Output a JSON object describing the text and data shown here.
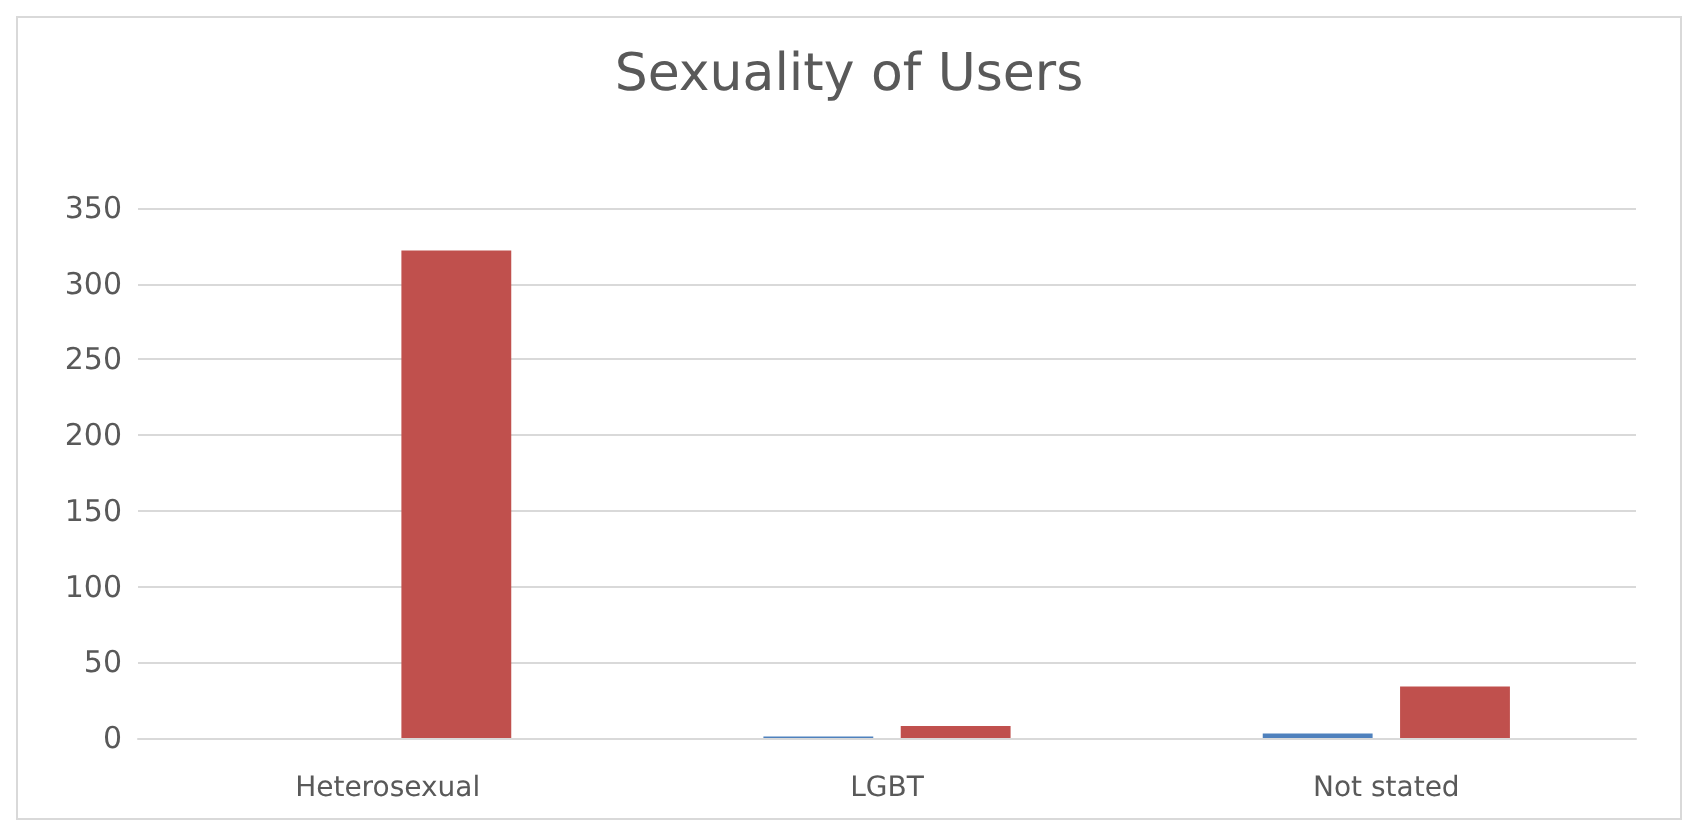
{
  "chart_data": {
    "type": "bar",
    "title": "Sexuality of Users",
    "categories": [
      "Heterosexual",
      "LGBT",
      "Not stated"
    ],
    "series": [
      {
        "color": "#4f81bd",
        "values": [
          0,
          1,
          3
        ]
      },
      {
        "color": "#c0504d",
        "values": [
          322,
          8,
          34
        ]
      }
    ],
    "ylim": [
      0,
      350
    ],
    "yticks": [
      0,
      50,
      100,
      150,
      200,
      250,
      300,
      350
    ],
    "grid": "y"
  }
}
